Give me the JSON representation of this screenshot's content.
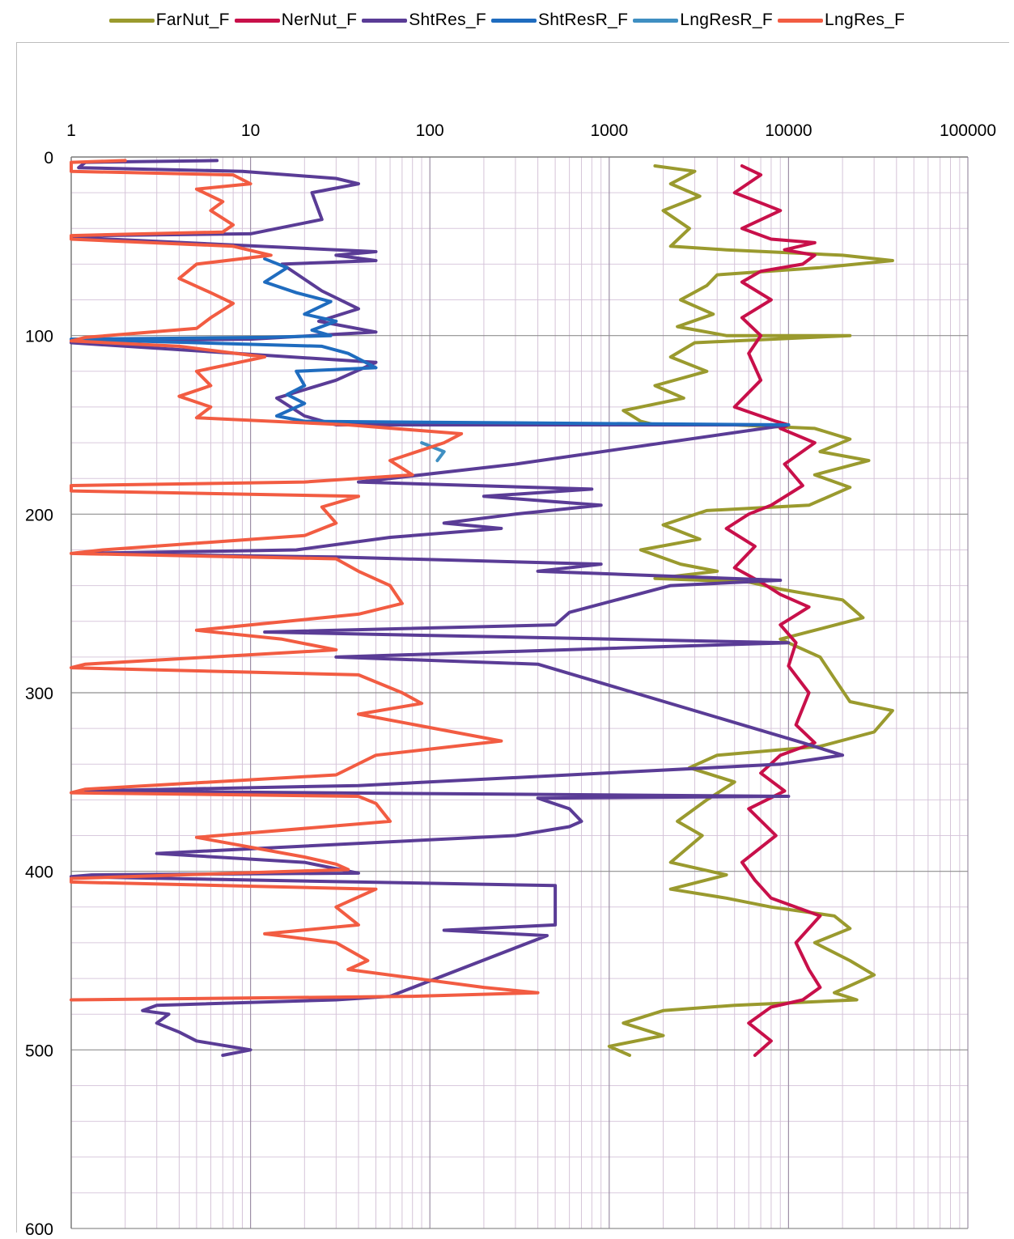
{
  "chart_data": {
    "type": "line",
    "x_scale": "log",
    "xlim": [
      1,
      100000
    ],
    "ylim": [
      0,
      600
    ],
    "y_inverted": true,
    "x_ticks": [
      "1",
      "10",
      "100",
      "1000",
      "10000",
      "100000"
    ],
    "y_ticks": [
      "0",
      "100",
      "200",
      "300",
      "400",
      "500",
      "600"
    ],
    "grid": true,
    "legend_position": "top",
    "series": [
      {
        "name": "FarNut_F",
        "color": "#9a9a2e",
        "points": [
          [
            1800,
            5
          ],
          [
            3000,
            8
          ],
          [
            2200,
            15
          ],
          [
            3200,
            22
          ],
          [
            2000,
            30
          ],
          [
            2800,
            40
          ],
          [
            2200,
            50
          ],
          [
            4500,
            52
          ],
          [
            20000,
            55
          ],
          [
            38000,
            58
          ],
          [
            15000,
            62
          ],
          [
            4000,
            66
          ],
          [
            3500,
            72
          ],
          [
            2500,
            80
          ],
          [
            3800,
            88
          ],
          [
            2400,
            95
          ],
          [
            4500,
            100
          ],
          [
            22000,
            100
          ],
          [
            3000,
            104
          ],
          [
            2200,
            112
          ],
          [
            3500,
            120
          ],
          [
            1800,
            128
          ],
          [
            2600,
            135
          ],
          [
            1200,
            142
          ],
          [
            1500,
            148
          ],
          [
            1800,
            150
          ],
          [
            5000,
            150
          ],
          [
            14000,
            152
          ],
          [
            22000,
            158
          ],
          [
            15000,
            165
          ],
          [
            28000,
            170
          ],
          [
            14000,
            178
          ],
          [
            22000,
            185
          ],
          [
            13000,
            195
          ],
          [
            3500,
            198
          ],
          [
            2000,
            206
          ],
          [
            3200,
            214
          ],
          [
            1500,
            220
          ],
          [
            2500,
            228
          ],
          [
            4000,
            232
          ],
          [
            1800,
            236
          ],
          [
            6000,
            238
          ],
          [
            9000,
            242
          ],
          [
            20000,
            248
          ],
          [
            26000,
            258
          ],
          [
            14000,
            265
          ],
          [
            9000,
            270
          ],
          [
            15000,
            280
          ],
          [
            18000,
            292
          ],
          [
            22000,
            305
          ],
          [
            38000,
            310
          ],
          [
            30000,
            322
          ],
          [
            15000,
            330
          ],
          [
            4000,
            335
          ],
          [
            2800,
            342
          ],
          [
            5000,
            350
          ],
          [
            3500,
            360
          ],
          [
            2400,
            372
          ],
          [
            3300,
            380
          ],
          [
            2200,
            395
          ],
          [
            4500,
            402
          ],
          [
            2200,
            410
          ],
          [
            4500,
            415
          ],
          [
            8000,
            420
          ],
          [
            18000,
            425
          ],
          [
            22000,
            432
          ],
          [
            14000,
            440
          ],
          [
            22000,
            450
          ],
          [
            30000,
            458
          ],
          [
            18000,
            468
          ],
          [
            24000,
            472
          ],
          [
            5000,
            475
          ],
          [
            2000,
            478
          ],
          [
            1200,
            485
          ],
          [
            2000,
            492
          ],
          [
            1000,
            498
          ],
          [
            1300,
            503
          ]
        ]
      },
      {
        "name": "NerNut_F",
        "color": "#c8104a",
        "points": [
          [
            5500,
            5
          ],
          [
            7000,
            10
          ],
          [
            5000,
            20
          ],
          [
            9000,
            30
          ],
          [
            5500,
            40
          ],
          [
            8000,
            46
          ],
          [
            14000,
            48
          ],
          [
            9500,
            52
          ],
          [
            14000,
            55
          ],
          [
            12000,
            60
          ],
          [
            7000,
            64
          ],
          [
            5500,
            70
          ],
          [
            8000,
            80
          ],
          [
            5500,
            90
          ],
          [
            7000,
            100
          ],
          [
            6000,
            110
          ],
          [
            7000,
            125
          ],
          [
            5000,
            140
          ],
          [
            8500,
            148
          ],
          [
            10000,
            150
          ],
          [
            9000,
            152
          ],
          [
            14000,
            160
          ],
          [
            9500,
            172
          ],
          [
            12000,
            184
          ],
          [
            8000,
            195
          ],
          [
            6000,
            200
          ],
          [
            4500,
            208
          ],
          [
            6500,
            218
          ],
          [
            5000,
            230
          ],
          [
            7000,
            238
          ],
          [
            9000,
            245
          ],
          [
            13000,
            252
          ],
          [
            9000,
            262
          ],
          [
            11000,
            272
          ],
          [
            10000,
            285
          ],
          [
            13000,
            300
          ],
          [
            11000,
            318
          ],
          [
            14000,
            328
          ],
          [
            9000,
            335
          ],
          [
            7000,
            345
          ],
          [
            9500,
            355
          ],
          [
            6000,
            365
          ],
          [
            8500,
            380
          ],
          [
            5500,
            395
          ],
          [
            6500,
            405
          ],
          [
            8000,
            415
          ],
          [
            15000,
            425
          ],
          [
            11000,
            440
          ],
          [
            13000,
            455
          ],
          [
            15000,
            465
          ],
          [
            12000,
            472
          ],
          [
            8000,
            476
          ],
          [
            6000,
            485
          ],
          [
            8000,
            495
          ],
          [
            6500,
            503
          ]
        ]
      },
      {
        "name": "ShtRes_F",
        "color": "#5a3c96",
        "points": [
          [
            6.5,
            2
          ],
          [
            1.2,
            3
          ],
          [
            1.1,
            6
          ],
          [
            9,
            8
          ],
          [
            30,
            12
          ],
          [
            40,
            15
          ],
          [
            22,
            20
          ],
          [
            25,
            35
          ],
          [
            10,
            43
          ],
          [
            1.3,
            44
          ],
          [
            1,
            45
          ],
          [
            50,
            53
          ],
          [
            30,
            55
          ],
          [
            50,
            58
          ],
          [
            15,
            60
          ],
          [
            25,
            75
          ],
          [
            40,
            85
          ],
          [
            24,
            92
          ],
          [
            50,
            98
          ],
          [
            10,
            102
          ],
          [
            1.1,
            103
          ],
          [
            1,
            104
          ],
          [
            50,
            115
          ],
          [
            30,
            125
          ],
          [
            14,
            135
          ],
          [
            20,
            145
          ],
          [
            30,
            150
          ],
          [
            10000,
            150
          ],
          [
            300,
            172
          ],
          [
            40,
            182
          ],
          [
            800,
            186
          ],
          [
            200,
            190
          ],
          [
            900,
            195
          ],
          [
            300,
            200
          ],
          [
            120,
            205
          ],
          [
            250,
            208
          ],
          [
            60,
            213
          ],
          [
            18,
            220
          ],
          [
            1.1,
            222
          ],
          [
            30,
            224
          ],
          [
            900,
            228
          ],
          [
            400,
            232
          ],
          [
            9000,
            237
          ],
          [
            2200,
            240
          ],
          [
            600,
            255
          ],
          [
            500,
            262
          ],
          [
            12,
            266
          ],
          [
            10000,
            272
          ],
          [
            30,
            280
          ],
          [
            400,
            284
          ],
          [
            12000,
            328
          ],
          [
            20000,
            335
          ],
          [
            9000,
            340
          ],
          [
            40,
            352
          ],
          [
            1.2,
            355
          ],
          [
            10000,
            358
          ],
          [
            400,
            359
          ],
          [
            600,
            365
          ],
          [
            700,
            372
          ],
          [
            600,
            375
          ],
          [
            300,
            380
          ],
          [
            3,
            390
          ],
          [
            20,
            395
          ],
          [
            40,
            401
          ],
          [
            1.3,
            402
          ],
          [
            1,
            403
          ],
          [
            500,
            408
          ],
          [
            500,
            430
          ],
          [
            120,
            433
          ],
          [
            450,
            436
          ],
          [
            60,
            470
          ],
          [
            30,
            472
          ],
          [
            3,
            475
          ],
          [
            2.5,
            478
          ],
          [
            3.5,
            480
          ],
          [
            3,
            485
          ],
          [
            4,
            490
          ],
          [
            5,
            495
          ],
          [
            10,
            500
          ],
          [
            7,
            503
          ]
        ]
      },
      {
        "name": "ShtResR_F",
        "color": "#1f6cbf",
        "points": [
          [
            12,
            57
          ],
          [
            16,
            62
          ],
          [
            12,
            70
          ],
          [
            18,
            76
          ],
          [
            28,
            81
          ],
          [
            20,
            88
          ],
          [
            30,
            92
          ],
          [
            22,
            97
          ],
          [
            28,
            100
          ],
          [
            12,
            101
          ],
          [
            1,
            102
          ],
          [
            25,
            106
          ],
          [
            35,
            110
          ],
          [
            50,
            118
          ],
          [
            18,
            120
          ],
          [
            20,
            128
          ],
          [
            16,
            133
          ],
          [
            20,
            138
          ],
          [
            14,
            145
          ],
          [
            20,
            148
          ],
          [
            10000,
            150
          ]
        ]
      },
      {
        "name": "LngResR_F",
        "color": "#3f8fc2",
        "points": [
          [
            90,
            160
          ],
          [
            120,
            165
          ],
          [
            110,
            170
          ]
        ]
      },
      {
        "name": "LngRes_F",
        "color": "#f25c42",
        "points": [
          [
            2,
            2
          ],
          [
            1,
            3
          ],
          [
            1,
            8
          ],
          [
            8,
            10
          ],
          [
            10,
            15
          ],
          [
            5,
            18
          ],
          [
            7,
            25
          ],
          [
            6,
            30
          ],
          [
            8,
            38
          ],
          [
            7,
            42
          ],
          [
            1,
            44
          ],
          [
            1,
            46
          ],
          [
            8,
            50
          ],
          [
            13,
            55
          ],
          [
            5,
            60
          ],
          [
            4,
            68
          ],
          [
            6,
            76
          ],
          [
            8,
            82
          ],
          [
            6,
            90
          ],
          [
            5,
            96
          ],
          [
            1.2,
            101
          ],
          [
            1,
            103
          ],
          [
            4,
            106
          ],
          [
            12,
            112
          ],
          [
            5,
            120
          ],
          [
            6,
            128
          ],
          [
            4,
            134
          ],
          [
            6,
            140
          ],
          [
            5,
            146
          ],
          [
            35,
            150
          ],
          [
            150,
            155
          ],
          [
            120,
            160
          ],
          [
            60,
            170
          ],
          [
            80,
            178
          ],
          [
            20,
            182
          ],
          [
            1,
            184
          ],
          [
            1,
            187
          ],
          [
            40,
            190
          ],
          [
            25,
            196
          ],
          [
            30,
            205
          ],
          [
            20,
            212
          ],
          [
            1.5,
            220
          ],
          [
            1,
            222
          ],
          [
            30,
            225
          ],
          [
            40,
            232
          ],
          [
            60,
            240
          ],
          [
            70,
            250
          ],
          [
            40,
            256
          ],
          [
            5,
            265
          ],
          [
            15,
            270
          ],
          [
            30,
            276
          ],
          [
            1.2,
            284
          ],
          [
            1,
            286
          ],
          [
            40,
            290
          ],
          [
            70,
            300
          ],
          [
            90,
            306
          ],
          [
            40,
            312
          ],
          [
            250,
            327
          ],
          [
            50,
            335
          ],
          [
            30,
            346
          ],
          [
            1.2,
            354
          ],
          [
            1,
            356
          ],
          [
            40,
            358
          ],
          [
            50,
            362
          ],
          [
            60,
            372
          ],
          [
            5,
            381
          ],
          [
            20,
            392
          ],
          [
            30,
            396
          ],
          [
            35,
            399
          ],
          [
            1,
            404
          ],
          [
            1,
            406
          ],
          [
            50,
            410
          ],
          [
            30,
            420
          ],
          [
            40,
            430
          ],
          [
            12,
            435
          ],
          [
            30,
            440
          ],
          [
            45,
            450
          ],
          [
            35,
            455
          ],
          [
            200,
            465
          ],
          [
            400,
            468
          ],
          [
            80,
            470
          ],
          [
            1,
            472
          ]
        ]
      }
    ]
  }
}
